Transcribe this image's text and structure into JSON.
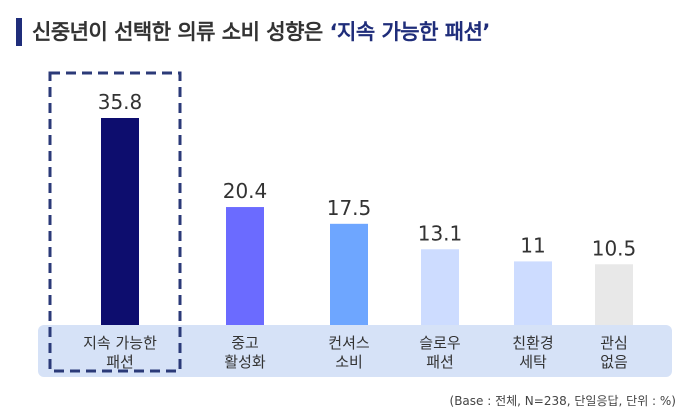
{
  "title": {
    "prefix": "신중년이 선택한 의류 소비 성향은 ",
    "highlight": "‘지속 가능한 패션’"
  },
  "note": "(Base : 전체, N=238, 단일응답, 단위 : %)",
  "chart_data": {
    "type": "bar",
    "title": "신중년이 선택한 의류 소비 성향은 ‘지속 가능한 패션’",
    "categories": [
      [
        "지속 가능한",
        "패션"
      ],
      [
        "중고",
        "활성화"
      ],
      [
        "컨셔스",
        "소비"
      ],
      [
        "슬로우",
        "패션"
      ],
      [
        "친환경",
        "세탁"
      ],
      [
        "관심",
        "없음"
      ]
    ],
    "values": [
      35.8,
      20.4,
      17.5,
      13.1,
      11,
      10.5
    ],
    "value_labels": [
      "35.8",
      "20.4",
      "17.5",
      "13.1",
      "11",
      "10.5"
    ],
    "colors": [
      "#0d0d6e",
      "#6b6bff",
      "#6ea6ff",
      "#cddcff",
      "#cddcff",
      "#e8e8e8"
    ],
    "highlighted_index": 0,
    "ylim": [
      0,
      40
    ],
    "grid": false,
    "legend": "none",
    "unit": "%"
  }
}
